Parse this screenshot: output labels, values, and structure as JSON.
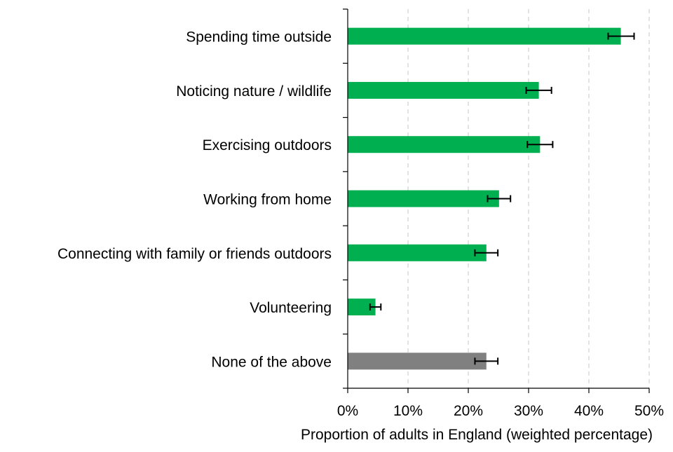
{
  "chart_data": {
    "type": "bar",
    "orientation": "horizontal",
    "categories": [
      "Spending time outside",
      "Noticing nature / wildlife",
      "Exercising outdoors",
      "Working from home",
      "Connecting with family or friends outdoors",
      "Volunteering",
      "None of the above"
    ],
    "values": [
      45.3,
      31.7,
      31.9,
      25.1,
      23.0,
      4.6,
      23.0
    ],
    "error_low": [
      43.2,
      29.6,
      29.8,
      23.2,
      21.1,
      3.7,
      21.1
    ],
    "error_high": [
      47.5,
      33.8,
      34.0,
      27.0,
      24.9,
      5.5,
      24.9
    ],
    "bar_colors": [
      "#00b050",
      "#00b050",
      "#00b050",
      "#00b050",
      "#00b050",
      "#00b050",
      "#808080"
    ],
    "xlim": [
      0,
      50
    ],
    "xticks": [
      "0%",
      "10%",
      "20%",
      "30%",
      "40%",
      "50%"
    ],
    "xtick_values": [
      0,
      10,
      20,
      30,
      40,
      50
    ],
    "xlabel": "Proportion of adults in England (weighted percentage)",
    "grid": "vertical dashed"
  }
}
